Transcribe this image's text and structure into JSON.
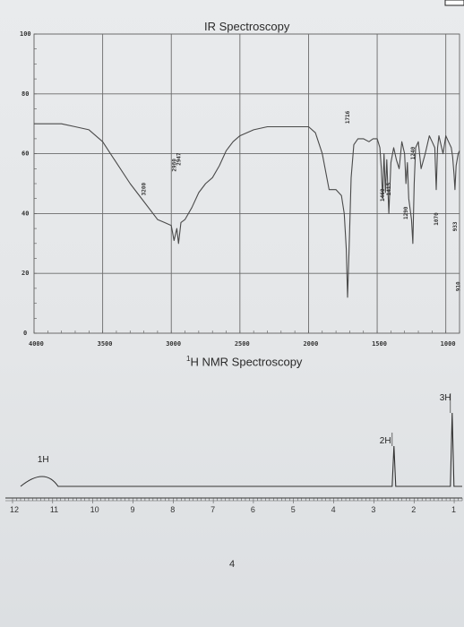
{
  "chart_data": [
    {
      "type": "line",
      "title": "IR Spectroscopy",
      "xlabel": "",
      "ylabel": "",
      "xlim": [
        4000,
        900
      ],
      "ylim": [
        0,
        100
      ],
      "x_ticks": [
        "4000",
        "3500",
        "3000",
        "2500",
        "2000",
        "1500",
        "1000"
      ],
      "y_ticks": [
        "100",
        "80",
        "60",
        "40",
        "20",
        "0"
      ],
      "grid": true,
      "series": [
        {
          "x": [
            4000,
            3900,
            3800,
            3700,
            3600,
            3500,
            3400,
            3300,
            3200,
            3100,
            3050,
            3000,
            2980,
            2960,
            2947,
            2930,
            2900,
            2850,
            2800,
            2750,
            2700,
            2650,
            2600,
            2550,
            2500,
            2450,
            2400,
            2300,
            2200,
            2100,
            2000,
            1950,
            1900,
            1850,
            1800,
            1760,
            1740,
            1725,
            1716,
            1705,
            1690,
            1670,
            1640,
            1600,
            1560,
            1530,
            1500,
            1480,
            1470,
            1460,
            1450,
            1440,
            1430,
            1415,
            1400,
            1380,
            1360,
            1340,
            1320,
            1300,
            1290,
            1280,
            1270,
            1250,
            1240,
            1230,
            1220,
            1200,
            1180,
            1150,
            1120,
            1100,
            1080,
            1070,
            1060,
            1050,
            1040,
            1020,
            1000,
            980,
            960,
            950,
            940,
            933,
            925,
            910,
            900
          ],
          "y": [
            70,
            70,
            70,
            69,
            68,
            64,
            57,
            50,
            44,
            38,
            37,
            36,
            31,
            35,
            30,
            37,
            38,
            42,
            47,
            50,
            52,
            56,
            61,
            64,
            66,
            67,
            68,
            69,
            69,
            69,
            69,
            67,
            60,
            48,
            48,
            46,
            40,
            28,
            12,
            28,
            52,
            63,
            65,
            65,
            64,
            65,
            65,
            62,
            55,
            45,
            60,
            47,
            58,
            40,
            57,
            62,
            58,
            55,
            64,
            60,
            50,
            57,
            45,
            38,
            30,
            50,
            62,
            64,
            55,
            60,
            66,
            64,
            62,
            48,
            62,
            66,
            64,
            60,
            66,
            64,
            62,
            59,
            53,
            48,
            56,
            60,
            61
          ]
        }
      ],
      "annotations": [
        "3200",
        "2980",
        "2947",
        "1716",
        "1460",
        "1415",
        "1290",
        "1240",
        "1070",
        "933",
        "910"
      ]
    },
    {
      "type": "line",
      "title": "1H NMR Spectroscopy",
      "title_sup": "1",
      "title_main": "H NMR Spectroscopy",
      "xlabel": "",
      "ylabel": "",
      "xlim": [
        12,
        0.8
      ],
      "x_ticks": [
        "12",
        "11",
        "10",
        "9",
        "8",
        "7",
        "6",
        "5",
        "4",
        "3",
        "2",
        "1"
      ],
      "peaks": [
        {
          "shift": 11.2,
          "integration": "1H",
          "shape": "broad"
        },
        {
          "shift": 2.5,
          "integration": "2H",
          "shape": "singlet"
        },
        {
          "shift": 1.05,
          "integration": "3H",
          "shape": "singlet"
        }
      ]
    }
  ],
  "page": {
    "ir_title": "IR Spectroscopy",
    "nmr_title_sup": "1",
    "nmr_title_main": "H NMR Spectroscopy",
    "page_number": "4"
  }
}
